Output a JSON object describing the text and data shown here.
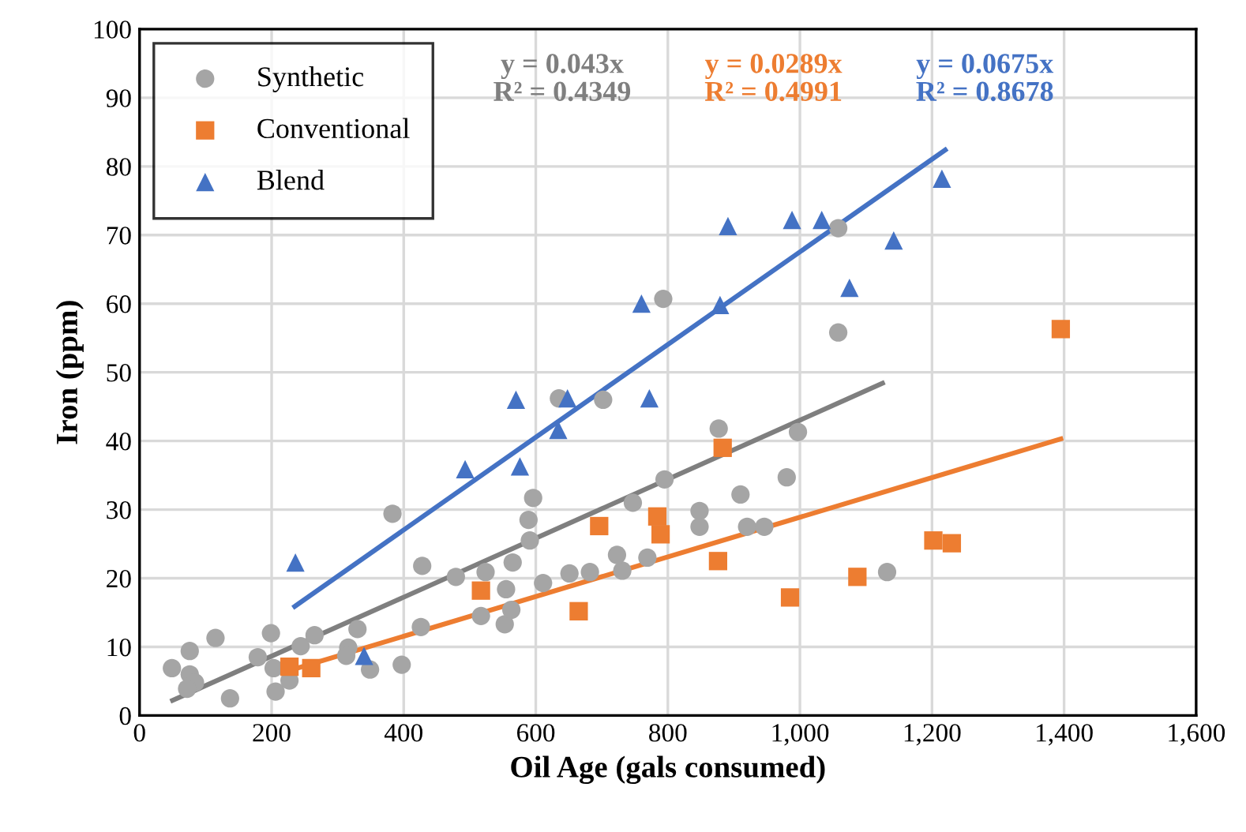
{
  "chart_data": {
    "type": "scatter",
    "xlabel": "Oil Age (gals consumed)",
    "ylabel": "Iron (ppm)",
    "xlim": [
      0,
      1600
    ],
    "ylim": [
      0,
      100
    ],
    "xticks": [
      0,
      200,
      400,
      600,
      800,
      {
        "value": 1000,
        "label": "1,000"
      },
      {
        "value": 1200,
        "label": "1,200"
      },
      {
        "value": 1400,
        "label": "1,400"
      },
      {
        "value": 1600,
        "label": "1,600"
      }
    ],
    "yticks": [
      0,
      10,
      20,
      30,
      40,
      50,
      60,
      70,
      80,
      90,
      100
    ],
    "grid": true,
    "legend": "top left",
    "annotations": [
      "y = 0.043x\nR² = 0.4349",
      "y = 0.0289x\nR² = 0.4991",
      "y = 0.0675x\nR² = 0.8678"
    ],
    "series": [
      {
        "name": "Synthetic",
        "color": "#a5a5a5",
        "marker": "circle",
        "x": [
          49,
          76,
          76,
          84,
          72,
          115,
          137,
          179,
          199,
          206,
          203,
          227,
          244,
          265,
          316,
          313,
          330,
          349,
          383,
          397,
          428,
          426,
          479,
          524,
          517,
          555,
          565,
          553,
          563,
          591,
          589,
          596,
          611,
          651,
          682,
          731,
          723,
          769,
          747,
          795,
          848,
          848,
          877,
          910,
          920,
          946,
          980,
          997,
          1058,
          1058,
          1132,
          635,
          702,
          793
        ],
        "values": [
          6.9,
          9.4,
          6,
          4.8,
          3.9,
          11.3,
          2.5,
          8.5,
          12,
          3.5,
          6.9,
          5.1,
          10.1,
          11.7,
          9.9,
          8.7,
          12.6,
          6.7,
          29.4,
          7.4,
          21.8,
          12.9,
          20.2,
          20.9,
          14.5,
          18.4,
          22.3,
          13.3,
          15.4,
          25.5,
          28.5,
          31.7,
          19.3,
          20.7,
          20.9,
          21.1,
          23.4,
          23,
          31,
          34.4,
          29.8,
          27.5,
          41.8,
          32.2,
          27.5,
          27.5,
          34.7,
          41.3,
          71,
          55.8,
          20.9,
          46.2,
          46,
          60.7
        ]
      },
      {
        "name": "Conventional",
        "color": "#ed7d31",
        "marker": "square",
        "x": [
          227,
          260,
          517,
          665,
          696,
          784,
          789,
          883,
          876,
          985,
          1087,
          1202,
          1230,
          1395
        ],
        "values": [
          7.1,
          6.9,
          18.2,
          15.2,
          27.6,
          29,
          26.4,
          39,
          22.5,
          17.2,
          20.2,
          25.5,
          25.1,
          56.3
        ]
      },
      {
        "name": "Blend",
        "color": "#4472c4",
        "marker": "triangle",
        "x": [
          236,
          340,
          493,
          576,
          570,
          648,
          634,
          772,
          760,
          879,
          891,
          988,
          1033,
          1142,
          1075,
          1215
        ],
        "values": [
          22.3,
          8.7,
          35.9,
          36.3,
          46,
          46.2,
          41.6,
          46.2,
          60,
          59.8,
          71.3,
          72.2,
          72.2,
          69.2,
          62.3,
          78.2
        ]
      },
      {
        "type": "line",
        "color": "#7f7f7f",
        "marker": "none",
        "x": [
          50,
          1125
        ],
        "values": [
          2.2,
          48.4
        ]
      },
      {
        "type": "line",
        "color": "#ed7d31",
        "marker": "none",
        "x": [
          225,
          1395
        ],
        "values": [
          6.5,
          40.3
        ]
      },
      {
        "type": "line",
        "color": "#4472c4",
        "marker": "none",
        "x": [
          235,
          1220
        ],
        "values": [
          15.9,
          82.4
        ]
      }
    ]
  }
}
